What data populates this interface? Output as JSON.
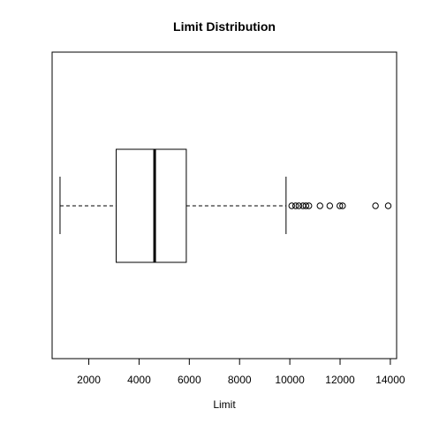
{
  "chart_data": {
    "type": "boxplot",
    "title": "Limit Distribution",
    "xlabel": "Limit",
    "ylabel": "",
    "orientation": "horizontal",
    "xlim": [
      540,
      14250
    ],
    "x_ticks": [
      2000,
      4000,
      6000,
      8000,
      10000,
      12000,
      14000
    ],
    "x_tick_labels": [
      "2000",
      "4000",
      "6000",
      "8000",
      "10000",
      "12000",
      "14000"
    ],
    "grid": false,
    "legend": "none",
    "box": {
      "whisker_low": 855,
      "q1": 3090,
      "median": 4620,
      "q3": 5880,
      "whisker_high": 9850
    },
    "outliers": [
      10075,
      10230,
      10360,
      10520,
      10640,
      10760,
      11200,
      11590,
      11990,
      12100,
      13410,
      13915
    ]
  }
}
